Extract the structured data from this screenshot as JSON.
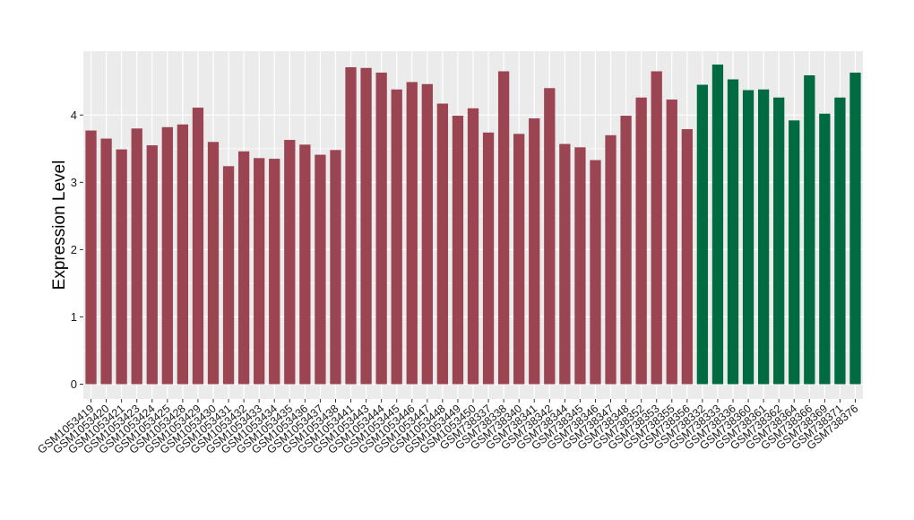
{
  "chart_data": {
    "type": "bar",
    "title": "",
    "xlabel": "",
    "ylabel": "Expression Level",
    "ylim": [
      -0.22,
      4.95
    ],
    "yticks": [
      0,
      1,
      2,
      3,
      4
    ],
    "grid": true,
    "colors": {
      "group1": "#9b4452",
      "group2": "#006a40",
      "panel_bg": "#ebebeb",
      "grid": "#ffffff"
    },
    "categories": [
      "GSM1053419",
      "GSM1053420",
      "GSM1053421",
      "GSM1053423",
      "GSM1053424",
      "GSM1053425",
      "GSM1053428",
      "GSM1053429",
      "GSM1053430",
      "GSM1053431",
      "GSM1053432",
      "GSM1053433",
      "GSM1053434",
      "GSM1053435",
      "GSM1053436",
      "GSM1053437",
      "GSM1053438",
      "GSM1053441",
      "GSM1053443",
      "GSM1053444",
      "GSM1053445",
      "GSM1053446",
      "GSM1053447",
      "GSM1053448",
      "GSM1053449",
      "GSM1053450",
      "GSM738337",
      "GSM738338",
      "GSM738340",
      "GSM738341",
      "GSM738342",
      "GSM738344",
      "GSM738345",
      "GSM738346",
      "GSM738347",
      "GSM738348",
      "GSM738352",
      "GSM738353",
      "GSM738355",
      "GSM738356",
      "GSM738332",
      "GSM738333",
      "GSM738336",
      "GSM738360",
      "GSM738361",
      "GSM738362",
      "GSM738364",
      "GSM738366",
      "GSM738369",
      "GSM738371",
      "GSM738376"
    ],
    "values": [
      3.77,
      3.65,
      3.49,
      3.8,
      3.55,
      3.82,
      3.86,
      4.11,
      3.6,
      3.24,
      3.46,
      3.36,
      3.35,
      3.63,
      3.56,
      3.41,
      3.48,
      4.71,
      4.7,
      4.63,
      4.38,
      4.49,
      4.46,
      4.17,
      3.99,
      4.1,
      3.74,
      4.65,
      3.72,
      3.95,
      4.4,
      3.57,
      3.52,
      3.33,
      3.7,
      3.99,
      4.26,
      4.65,
      4.23,
      3.79,
      4.45,
      4.75,
      4.53,
      4.37,
      4.38,
      4.26,
      3.92,
      4.59,
      4.02,
      4.26,
      4.63
    ],
    "groups": [
      "group1",
      "group1",
      "group1",
      "group1",
      "group1",
      "group1",
      "group1",
      "group1",
      "group1",
      "group1",
      "group1",
      "group1",
      "group1",
      "group1",
      "group1",
      "group1",
      "group1",
      "group1",
      "group1",
      "group1",
      "group1",
      "group1",
      "group1",
      "group1",
      "group1",
      "group1",
      "group1",
      "group1",
      "group1",
      "group1",
      "group1",
      "group1",
      "group1",
      "group1",
      "group1",
      "group1",
      "group1",
      "group1",
      "group1",
      "group1",
      "group2",
      "group2",
      "group2",
      "group2",
      "group2",
      "group2",
      "group2",
      "group2",
      "group2",
      "group2",
      "group2"
    ]
  }
}
